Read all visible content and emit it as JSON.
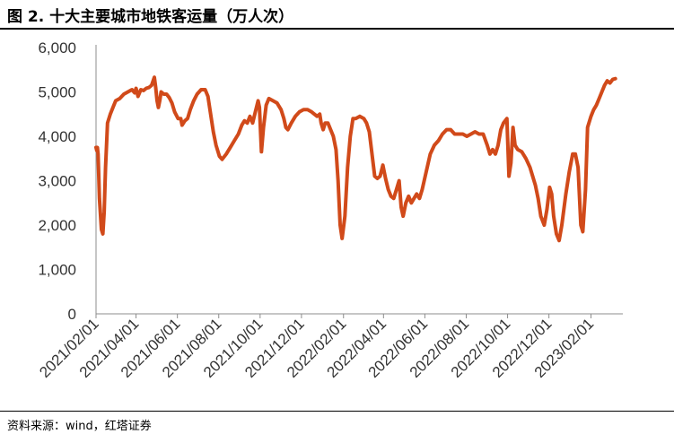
{
  "header": {
    "title": "图 2. 十大主要城市地铁客运量（万人次）"
  },
  "footer": {
    "source": "资料来源：wind，红塔证券"
  },
  "chart_data": {
    "type": "line",
    "title": "图 2. 十大主要城市地铁客运量（万人次）",
    "xlabel": "",
    "ylabel": "",
    "ylim": [
      0,
      6000
    ],
    "xlim": [
      "2021-02-01",
      "2023-03-20"
    ],
    "y_ticks": [
      0,
      1000,
      2000,
      3000,
      4000,
      5000,
      6000
    ],
    "y_tick_labels": [
      "0",
      "1,000",
      "2,000",
      "3,000",
      "4,000",
      "5,000",
      "6,000"
    ],
    "x_tick_labels": [
      "2021/02/01",
      "2021/04/01",
      "2021/06/01",
      "2021/08/01",
      "2021/10/01",
      "2021/12/01",
      "2022/02/01",
      "2022/04/01",
      "2022/06/01",
      "2022/08/01",
      "2022/10/01",
      "2022/12/01",
      "2023/02/01"
    ],
    "x_ticks": [
      "2021-02-01",
      "2021-04-01",
      "2021-06-01",
      "2021-08-01",
      "2021-10-01",
      "2021-12-01",
      "2022-02-01",
      "2022-04-01",
      "2022-06-01",
      "2022-08-01",
      "2022-10-01",
      "2022-12-01",
      "2023-02-01"
    ],
    "grid": false,
    "legend": "none",
    "series": [
      {
        "color": "#D14A1A",
        "points": [
          [
            "2021-02-01",
            3750
          ],
          [
            "2021-02-02",
            3680
          ],
          [
            "2021-02-03",
            3750
          ],
          [
            "2021-02-04",
            3600
          ],
          [
            "2021-02-06",
            2600
          ],
          [
            "2021-02-09",
            1900
          ],
          [
            "2021-02-11",
            1800
          ],
          [
            "2021-02-13",
            2300
          ],
          [
            "2021-02-15",
            3300
          ],
          [
            "2021-02-18",
            4300
          ],
          [
            "2021-02-22",
            4500
          ],
          [
            "2021-02-26",
            4650
          ],
          [
            "2021-03-02",
            4800
          ],
          [
            "2021-03-08",
            4850
          ],
          [
            "2021-03-14",
            4950
          ],
          [
            "2021-03-20",
            5000
          ],
          [
            "2021-03-26",
            5050
          ],
          [
            "2021-03-30",
            4980
          ],
          [
            "2021-04-01",
            5080
          ],
          [
            "2021-04-04",
            4900
          ],
          [
            "2021-04-08",
            5050
          ],
          [
            "2021-04-12",
            5030
          ],
          [
            "2021-04-16",
            5080
          ],
          [
            "2021-04-20",
            5100
          ],
          [
            "2021-04-24",
            5150
          ],
          [
            "2021-04-28",
            5330
          ],
          [
            "2021-04-30",
            5100
          ],
          [
            "2021-05-02",
            4800
          ],
          [
            "2021-05-04",
            4650
          ],
          [
            "2021-05-06",
            4800
          ],
          [
            "2021-05-08",
            5000
          ],
          [
            "2021-05-12",
            4950
          ],
          [
            "2021-05-16",
            4950
          ],
          [
            "2021-05-20",
            4870
          ],
          [
            "2021-05-24",
            4750
          ],
          [
            "2021-05-28",
            4550
          ],
          [
            "2021-06-02",
            4400
          ],
          [
            "2021-06-06",
            4400
          ],
          [
            "2021-06-08",
            4250
          ],
          [
            "2021-06-12",
            4350
          ],
          [
            "2021-06-16",
            4400
          ],
          [
            "2021-06-20",
            4600
          ],
          [
            "2021-06-25",
            4800
          ],
          [
            "2021-06-30",
            4950
          ],
          [
            "2021-07-06",
            5050
          ],
          [
            "2021-07-12",
            5050
          ],
          [
            "2021-07-16",
            4900
          ],
          [
            "2021-07-20",
            4500
          ],
          [
            "2021-07-24",
            4100
          ],
          [
            "2021-07-28",
            3800
          ],
          [
            "2021-08-02",
            3550
          ],
          [
            "2021-08-06",
            3480
          ],
          [
            "2021-08-12",
            3600
          ],
          [
            "2021-08-18",
            3750
          ],
          [
            "2021-08-24",
            3900
          ],
          [
            "2021-08-30",
            4050
          ],
          [
            "2021-09-04",
            4250
          ],
          [
            "2021-09-08",
            4350
          ],
          [
            "2021-09-12",
            4300
          ],
          [
            "2021-09-16",
            4450
          ],
          [
            "2021-09-20",
            4300
          ],
          [
            "2021-09-24",
            4550
          ],
          [
            "2021-09-28",
            4800
          ],
          [
            "2021-09-30",
            4650
          ],
          [
            "2021-10-03",
            3650
          ],
          [
            "2021-10-06",
            4200
          ],
          [
            "2021-10-10",
            4700
          ],
          [
            "2021-10-14",
            4850
          ],
          [
            "2021-10-20",
            4800
          ],
          [
            "2021-10-26",
            4750
          ],
          [
            "2021-11-01",
            4600
          ],
          [
            "2021-11-05",
            4400
          ],
          [
            "2021-11-08",
            4200
          ],
          [
            "2021-11-11",
            4150
          ],
          [
            "2021-11-16",
            4300
          ],
          [
            "2021-11-22",
            4450
          ],
          [
            "2021-11-28",
            4550
          ],
          [
            "2021-12-04",
            4600
          ],
          [
            "2021-12-10",
            4600
          ],
          [
            "2021-12-16",
            4550
          ],
          [
            "2021-12-20",
            4500
          ],
          [
            "2021-12-24",
            4450
          ],
          [
            "2021-12-28",
            4500
          ],
          [
            "2021-12-30",
            4300
          ],
          [
            "2022-01-02",
            4150
          ],
          [
            "2022-01-05",
            4300
          ],
          [
            "2022-01-09",
            4300
          ],
          [
            "2022-01-13",
            4150
          ],
          [
            "2022-01-17",
            4000
          ],
          [
            "2022-01-21",
            3700
          ],
          [
            "2022-01-24",
            3000
          ],
          [
            "2022-01-27",
            2000
          ],
          [
            "2022-01-30",
            1700
          ],
          [
            "2022-02-03",
            2200
          ],
          [
            "2022-02-07",
            3300
          ],
          [
            "2022-02-11",
            4000
          ],
          [
            "2022-02-15",
            4400
          ],
          [
            "2022-02-19",
            4400
          ],
          [
            "2022-02-25",
            4450
          ],
          [
            "2022-03-03",
            4400
          ],
          [
            "2022-03-07",
            4300
          ],
          [
            "2022-03-11",
            4100
          ],
          [
            "2022-03-15",
            3600
          ],
          [
            "2022-03-19",
            3100
          ],
          [
            "2022-03-23",
            3050
          ],
          [
            "2022-03-27",
            3100
          ],
          [
            "2022-03-31",
            3350
          ],
          [
            "2022-04-04",
            3050
          ],
          [
            "2022-04-08",
            2800
          ],
          [
            "2022-04-12",
            2650
          ],
          [
            "2022-04-16",
            2600
          ],
          [
            "2022-04-20",
            2800
          ],
          [
            "2022-04-24",
            3000
          ],
          [
            "2022-04-27",
            2400
          ],
          [
            "2022-04-30",
            2200
          ],
          [
            "2022-05-04",
            2500
          ],
          [
            "2022-05-08",
            2650
          ],
          [
            "2022-05-12",
            2500
          ],
          [
            "2022-05-16",
            2600
          ],
          [
            "2022-05-20",
            2700
          ],
          [
            "2022-05-24",
            2600
          ],
          [
            "2022-05-28",
            2800
          ],
          [
            "2022-06-03",
            3200
          ],
          [
            "2022-06-09",
            3600
          ],
          [
            "2022-06-15",
            3800
          ],
          [
            "2022-06-21",
            3900
          ],
          [
            "2022-06-27",
            4050
          ],
          [
            "2022-07-03",
            4150
          ],
          [
            "2022-07-09",
            4150
          ],
          [
            "2022-07-15",
            4050
          ],
          [
            "2022-07-21",
            4050
          ],
          [
            "2022-07-27",
            4050
          ],
          [
            "2022-08-02",
            4000
          ],
          [
            "2022-08-08",
            4050
          ],
          [
            "2022-08-14",
            4100
          ],
          [
            "2022-08-20",
            4050
          ],
          [
            "2022-08-26",
            4050
          ],
          [
            "2022-09-01",
            3800
          ],
          [
            "2022-09-05",
            3600
          ],
          [
            "2022-09-09",
            3700
          ],
          [
            "2022-09-13",
            3600
          ],
          [
            "2022-09-17",
            3800
          ],
          [
            "2022-09-21",
            4150
          ],
          [
            "2022-09-25",
            4300
          ],
          [
            "2022-09-30",
            4400
          ],
          [
            "2022-10-03",
            3100
          ],
          [
            "2022-10-06",
            3400
          ],
          [
            "2022-10-09",
            4200
          ],
          [
            "2022-10-12",
            3800
          ],
          [
            "2022-10-16",
            3700
          ],
          [
            "2022-10-22",
            3650
          ],
          [
            "2022-10-28",
            3500
          ],
          [
            "2022-11-03",
            3300
          ],
          [
            "2022-11-07",
            3100
          ],
          [
            "2022-11-11",
            2900
          ],
          [
            "2022-11-15",
            2600
          ],
          [
            "2022-11-19",
            2200
          ],
          [
            "2022-11-24",
            2000
          ],
          [
            "2022-11-28",
            2350
          ],
          [
            "2022-12-02",
            2850
          ],
          [
            "2022-12-05",
            2700
          ],
          [
            "2022-12-08",
            2200
          ],
          [
            "2022-12-12",
            1800
          ],
          [
            "2022-12-16",
            1650
          ],
          [
            "2022-12-20",
            2000
          ],
          [
            "2022-12-26",
            2700
          ],
          [
            "2022-12-31",
            3200
          ],
          [
            "2023-01-05",
            3600
          ],
          [
            "2023-01-09",
            3600
          ],
          [
            "2023-01-13",
            3300
          ],
          [
            "2023-01-17",
            2000
          ],
          [
            "2023-01-20",
            1850
          ],
          [
            "2023-01-24",
            2800
          ],
          [
            "2023-01-27",
            4200
          ],
          [
            "2023-02-01",
            4450
          ],
          [
            "2023-02-05",
            4600
          ],
          [
            "2023-02-09",
            4700
          ],
          [
            "2023-02-13",
            4850
          ],
          [
            "2023-02-17",
            5000
          ],
          [
            "2023-02-21",
            5150
          ],
          [
            "2023-02-25",
            5250
          ],
          [
            "2023-03-01",
            5200
          ],
          [
            "2023-03-05",
            5280
          ],
          [
            "2023-03-09",
            5300
          ]
        ]
      }
    ]
  }
}
